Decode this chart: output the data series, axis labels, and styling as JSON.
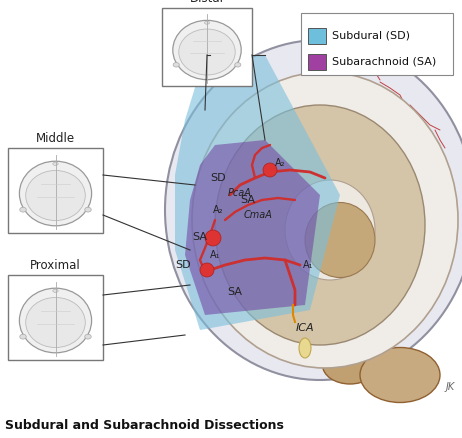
{
  "title": "Subdural and Subarachnoid Dissections",
  "legend_items": [
    {
      "label": "Subdural (SD)",
      "color": "#6DBFDB"
    },
    {
      "label": "Subarachnoid (SA)",
      "color": "#A040A0"
    }
  ],
  "figsize": [
    4.62,
    4.38
  ],
  "dpi": 100,
  "title_fontsize": 9,
  "title_color": "#111111",
  "bg_color": "#FFFFFF"
}
